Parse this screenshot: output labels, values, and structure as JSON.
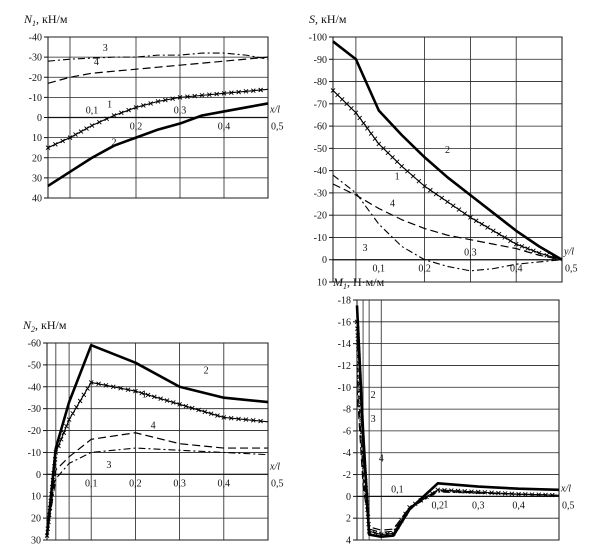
{
  "chart_data": [
    {
      "id": "n1",
      "type": "line",
      "title_symbol": "N",
      "title_sub": "1",
      "title_units": ", кН/м",
      "x_axis_label": "x/l",
      "x": [
        0,
        0.05,
        0.1,
        0.15,
        0.2,
        0.25,
        0.3,
        0.35,
        0.4,
        0.45,
        0.5
      ],
      "ylim": [
        40,
        -40
      ],
      "yticks": [
        -40,
        -30,
        -20,
        -10,
        0,
        10,
        20,
        30,
        40
      ],
      "ytick_labels": [
        "-40",
        "-30",
        "-20",
        "-10",
        "0",
        "10",
        "20",
        "30",
        "40"
      ],
      "xtick_labels": [
        {
          "x": 0.1,
          "text": "0,1",
          "side": "above"
        },
        {
          "x": 0.2,
          "text": "0,2",
          "side": "below"
        },
        {
          "x": 0.3,
          "text": "0,3",
          "side": "above"
        },
        {
          "x": 0.4,
          "text": "0,4",
          "side": "below"
        },
        {
          "x": 0.5,
          "text": "0,5",
          "side": "below"
        }
      ],
      "series": [
        {
          "name": "1",
          "style": "cross",
          "values": [
            15,
            10,
            4,
            -1,
            -5,
            -8,
            -10,
            -11,
            -12,
            -13,
            -14
          ]
        },
        {
          "name": "2",
          "style": "thick",
          "values": [
            34,
            27,
            20,
            14,
            10,
            6,
            3,
            -1,
            -3,
            -5,
            -7
          ]
        },
        {
          "name": "3",
          "style": "dashdot",
          "values": [
            -28,
            -29,
            -29.5,
            -30,
            -30,
            -31,
            -31,
            -32,
            -32,
            -31,
            -29
          ]
        },
        {
          "name": "4",
          "style": "dash",
          "values": [
            -17,
            -20,
            -22,
            -23,
            -24,
            -25,
            -26,
            -27,
            -28,
            -29,
            -30
          ]
        }
      ],
      "labels": [
        {
          "text": "1",
          "x": 0.14,
          "y": -5
        },
        {
          "text": "2",
          "x": 0.15,
          "y": 14
        },
        {
          "text": "3",
          "x": 0.13,
          "y": -33
        },
        {
          "text": "4",
          "x": 0.11,
          "y": -26
        }
      ]
    },
    {
      "id": "s",
      "type": "line",
      "title_symbol": "S",
      "title_sub": "",
      "title_units": ", кН/м",
      "x_axis_label": "y/l",
      "x": [
        0,
        0.05,
        0.1,
        0.15,
        0.2,
        0.25,
        0.3,
        0.35,
        0.4,
        0.45,
        0.5
      ],
      "ylim": [
        10,
        -100
      ],
      "yticks": [
        -100,
        -90,
        -80,
        -70,
        -60,
        -50,
        -40,
        -30,
        -20,
        -10,
        0,
        10
      ],
      "ytick_labels": [
        "-100",
        "-90",
        "-80",
        "-70",
        "-60",
        "-50",
        "-40",
        "-30",
        "-20",
        "-10",
        "0",
        "10"
      ],
      "xtick_labels": [
        {
          "x": 0.1,
          "text": "0,1",
          "side": "below"
        },
        {
          "x": 0.2,
          "text": "0,2",
          "side": "below"
        },
        {
          "x": 0.3,
          "text": "0,3",
          "side": "above"
        },
        {
          "x": 0.4,
          "text": "0,4",
          "side": "below"
        },
        {
          "x": 0.5,
          "text": "0,5",
          "side": "below"
        }
      ],
      "series": [
        {
          "name": "1",
          "style": "cross",
          "values": [
            -76,
            -66,
            -52,
            -42,
            -33,
            -26,
            -19,
            -13,
            -7,
            -3,
            0
          ]
        },
        {
          "name": "2",
          "style": "thick",
          "values": [
            -98,
            -90,
            -67,
            -56,
            -46,
            -37,
            -29,
            -21,
            -13,
            -6,
            0
          ]
        },
        {
          "name": "3",
          "style": "dashdot",
          "values": [
            -38,
            -30,
            -16,
            -6,
            0,
            3,
            5,
            4,
            2,
            1,
            0
          ]
        },
        {
          "name": "4",
          "style": "dash",
          "values": [
            -34,
            -29,
            -23,
            -18,
            -14,
            -11,
            -9,
            -7,
            -5,
            -2,
            0
          ]
        }
      ],
      "labels": [
        {
          "text": "1",
          "x": 0.14,
          "y": -36
        },
        {
          "text": "2",
          "x": 0.25,
          "y": -48
        },
        {
          "text": "3",
          "x": 0.07,
          "y": -4
        },
        {
          "text": "4",
          "x": 0.13,
          "y": -24
        }
      ]
    },
    {
      "id": "n2",
      "type": "line",
      "title_symbol": "N",
      "title_sub": "2",
      "title_units": ", кН/м",
      "x_axis_label": "x/l",
      "x": [
        0,
        0.02,
        0.05,
        0.1,
        0.2,
        0.3,
        0.4,
        0.5
      ],
      "ylim": [
        30,
        -60
      ],
      "yticks": [
        -60,
        -50,
        -40,
        -30,
        -20,
        -10,
        0,
        10,
        20,
        30
      ],
      "ytick_labels": [
        "-60",
        "-50",
        "-40",
        "-30",
        "-20",
        "-10",
        "0",
        "10",
        "20",
        "30"
      ],
      "xtick_labels": [
        {
          "x": 0.1,
          "text": "0,1",
          "side": "below"
        },
        {
          "x": 0.2,
          "text": "0,2",
          "side": "below"
        },
        {
          "x": 0.3,
          "text": "0,3",
          "side": "below"
        },
        {
          "x": 0.4,
          "text": "0,4",
          "side": "below"
        },
        {
          "x": 0.5,
          "text": "0,5",
          "side": "below"
        }
      ],
      "series": [
        {
          "name": "1",
          "style": "cross",
          "values": [
            28,
            -10,
            -25,
            -42,
            -38,
            -32,
            -26,
            -24
          ]
        },
        {
          "name": "2",
          "style": "thick",
          "values": [
            28,
            -12,
            -33,
            -59,
            -51,
            -40,
            -35,
            -33
          ]
        },
        {
          "name": "3",
          "style": "dashdot",
          "values": [
            28,
            2,
            -5,
            -10,
            -12,
            -11,
            -10,
            -9
          ]
        },
        {
          "name": "4",
          "style": "dash",
          "values": [
            28,
            -2,
            -8,
            -16,
            -19,
            -14,
            -12,
            -12
          ]
        }
      ],
      "labels": [
        {
          "text": "1",
          "x": 0.22,
          "y": -35
        },
        {
          "text": "2",
          "x": 0.36,
          "y": -46
        },
        {
          "text": "3",
          "x": 0.14,
          "y": -3
        },
        {
          "text": "4",
          "x": 0.24,
          "y": -21
        }
      ]
    },
    {
      "id": "m1",
      "type": "line",
      "title_symbol": "M",
      "title_sub": "1",
      "title_units": ", Н·м/м",
      "x_axis_label": "x/l",
      "x": [
        0,
        0.015,
        0.03,
        0.06,
        0.09,
        0.13,
        0.2,
        0.3,
        0.4,
        0.5
      ],
      "ylim": [
        4,
        -18
      ],
      "yticks": [
        -18,
        -16,
        -14,
        -12,
        -10,
        -8,
        -6,
        -4,
        -2,
        0,
        2,
        4
      ],
      "ytick_labels": [
        "-18",
        "-16",
        "-14",
        "-12",
        "-10",
        "-8",
        "-6",
        "-4",
        "-2",
        "0",
        "2",
        "4"
      ],
      "xtick_labels": [
        {
          "x": 0.1,
          "text": "0,1",
          "side": "above"
        },
        {
          "x": 0.2,
          "text": "0,2",
          "side": "below"
        },
        {
          "x": 0.3,
          "text": "0,3",
          "side": "below"
        },
        {
          "x": 0.4,
          "text": "0,4",
          "side": "below"
        },
        {
          "x": 0.5,
          "text": "0,5",
          "side": "below"
        }
      ],
      "series": [
        {
          "name": "1",
          "style": "cross",
          "values": [
            -16,
            -4,
            3.2,
            3.5,
            3.4,
            1,
            -0.6,
            -0.4,
            -0.2,
            -0.1
          ]
        },
        {
          "name": "2",
          "style": "thick",
          "values": [
            -17.5,
            -6,
            3.5,
            3.7,
            3.6,
            1.2,
            -1.2,
            -0.9,
            -0.7,
            -0.6
          ]
        },
        {
          "name": "3",
          "style": "dashdot",
          "values": [
            -12,
            -2,
            3.0,
            3.3,
            3.2,
            1.1,
            -0.4,
            -0.3,
            -0.2,
            -0.1
          ]
        },
        {
          "name": "4",
          "style": "dash",
          "values": [
            -10,
            -1,
            2.8,
            3.1,
            3.0,
            1.0,
            -0.5,
            -0.3,
            -0.2,
            -0.1
          ]
        }
      ],
      "labels": [
        {
          "text": "1",
          "x": 0.22,
          "y": 1
        },
        {
          "text": "1",
          "x": 0.015,
          "y": -3
        },
        {
          "text": "2",
          "x": 0.04,
          "y": -9
        },
        {
          "text": "3",
          "x": 0.04,
          "y": -6.8
        },
        {
          "text": "4",
          "x": 0.06,
          "y": -3.2
        }
      ]
    }
  ]
}
